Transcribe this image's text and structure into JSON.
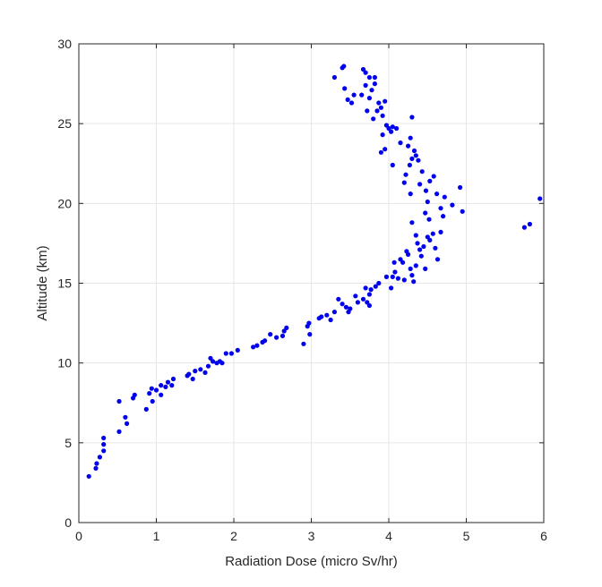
{
  "chart_data": {
    "type": "scatter",
    "xlabel": "Radiation Dose (micro Sv/hr)",
    "ylabel": "Altitude (km)",
    "xlim": [
      0,
      6
    ],
    "ylim": [
      0,
      30
    ],
    "xticks": [
      0,
      1,
      2,
      3,
      4,
      5,
      6
    ],
    "yticks": [
      0,
      5,
      10,
      15,
      20,
      25,
      30
    ],
    "grid": true,
    "colors": {
      "marker": "#0000ee",
      "axis": "#262626",
      "grid": "#e6e6e6"
    },
    "series": [
      {
        "points": [
          [
            0.13,
            2.9
          ],
          [
            0.22,
            3.4
          ],
          [
            0.23,
            3.7
          ],
          [
            0.27,
            4.1
          ],
          [
            0.32,
            4.5
          ],
          [
            0.32,
            4.9
          ],
          [
            0.32,
            5.3
          ],
          [
            0.52,
            5.7
          ],
          [
            0.6,
            6.6
          ],
          [
            0.62,
            6.2
          ],
          [
            0.52,
            7.6
          ],
          [
            0.7,
            7.8
          ],
          [
            0.72,
            8.0
          ],
          [
            0.87,
            7.1
          ],
          [
            0.91,
            8.1
          ],
          [
            0.94,
            8.4
          ],
          [
            0.95,
            7.6
          ],
          [
            1.0,
            8.3
          ],
          [
            1.06,
            8.0
          ],
          [
            1.06,
            8.6
          ],
          [
            1.12,
            8.5
          ],
          [
            1.15,
            8.8
          ],
          [
            1.2,
            8.6
          ],
          [
            1.22,
            9.0
          ],
          [
            1.4,
            9.2
          ],
          [
            1.42,
            9.3
          ],
          [
            1.47,
            9.0
          ],
          [
            1.5,
            9.5
          ],
          [
            1.57,
            9.6
          ],
          [
            1.63,
            9.4
          ],
          [
            1.67,
            9.8
          ],
          [
            1.7,
            10.3
          ],
          [
            1.73,
            10.1
          ],
          [
            1.78,
            10.0
          ],
          [
            1.82,
            10.1
          ],
          [
            1.85,
            10.0
          ],
          [
            1.9,
            10.6
          ],
          [
            1.97,
            10.6
          ],
          [
            2.05,
            10.8
          ],
          [
            2.25,
            11.0
          ],
          [
            2.3,
            11.1
          ],
          [
            2.37,
            11.3
          ],
          [
            2.4,
            11.4
          ],
          [
            2.47,
            11.8
          ],
          [
            2.55,
            11.6
          ],
          [
            2.63,
            11.7
          ],
          [
            2.65,
            12.0
          ],
          [
            2.68,
            12.2
          ],
          [
            2.9,
            11.2
          ],
          [
            2.95,
            12.3
          ],
          [
            2.97,
            12.5
          ],
          [
            2.98,
            11.8
          ],
          [
            3.1,
            12.8
          ],
          [
            3.13,
            12.9
          ],
          [
            3.2,
            13.0
          ],
          [
            3.25,
            12.7
          ],
          [
            3.3,
            13.2
          ],
          [
            3.35,
            14.0
          ],
          [
            3.4,
            13.7
          ],
          [
            3.45,
            13.5
          ],
          [
            3.48,
            13.2
          ],
          [
            3.5,
            13.4
          ],
          [
            3.57,
            14.2
          ],
          [
            3.6,
            13.8
          ],
          [
            3.67,
            14.0
          ],
          [
            3.7,
            14.7
          ],
          [
            3.72,
            13.8
          ],
          [
            3.75,
            14.3
          ],
          [
            3.75,
            13.6
          ],
          [
            3.77,
            14.6
          ],
          [
            3.83,
            14.8
          ],
          [
            3.87,
            15.0
          ],
          [
            3.97,
            15.4
          ],
          [
            4.03,
            14.7
          ],
          [
            4.05,
            15.4
          ],
          [
            4.07,
            16.3
          ],
          [
            4.08,
            15.7
          ],
          [
            4.12,
            15.3
          ],
          [
            4.15,
            16.5
          ],
          [
            4.18,
            16.3
          ],
          [
            4.2,
            15.2
          ],
          [
            4.23,
            17.0
          ],
          [
            4.25,
            16.8
          ],
          [
            4.28,
            15.9
          ],
          [
            4.3,
            15.5
          ],
          [
            4.32,
            15.1
          ],
          [
            4.35,
            16.1
          ],
          [
            4.37,
            17.5
          ],
          [
            4.4,
            17.1
          ],
          [
            4.42,
            16.7
          ],
          [
            4.45,
            17.3
          ],
          [
            4.47,
            15.9
          ],
          [
            4.5,
            17.9
          ],
          [
            4.53,
            17.7
          ],
          [
            4.57,
            18.1
          ],
          [
            4.6,
            17.2
          ],
          [
            4.63,
            16.5
          ],
          [
            4.67,
            18.2
          ],
          [
            4.3,
            18.8
          ],
          [
            4.35,
            18.0
          ],
          [
            4.47,
            19.4
          ],
          [
            4.5,
            20.1
          ],
          [
            4.52,
            19.0
          ],
          [
            4.62,
            20.6
          ],
          [
            4.67,
            19.7
          ],
          [
            4.7,
            19.2
          ],
          [
            4.72,
            20.4
          ],
          [
            4.82,
            19.9
          ],
          [
            4.92,
            21.0
          ],
          [
            4.95,
            19.5
          ],
          [
            4.2,
            21.3
          ],
          [
            4.22,
            21.8
          ],
          [
            4.27,
            22.4
          ],
          [
            4.28,
            20.6
          ],
          [
            4.3,
            22.8
          ],
          [
            4.35,
            23.0
          ],
          [
            4.38,
            22.7
          ],
          [
            4.4,
            21.2
          ],
          [
            4.43,
            22.0
          ],
          [
            4.48,
            20.8
          ],
          [
            4.53,
            21.4
          ],
          [
            4.58,
            21.7
          ],
          [
            4.05,
            22.4
          ],
          [
            4.15,
            23.8
          ],
          [
            4.25,
            23.6
          ],
          [
            4.28,
            24.1
          ],
          [
            4.3,
            25.4
          ],
          [
            4.33,
            23.3
          ],
          [
            3.9,
            23.2
          ],
          [
            3.92,
            24.3
          ],
          [
            3.95,
            23.4
          ],
          [
            3.97,
            24.9
          ],
          [
            4.0,
            24.7
          ],
          [
            4.03,
            24.5
          ],
          [
            4.05,
            24.8
          ],
          [
            4.1,
            24.7
          ],
          [
            3.8,
            25.3
          ],
          [
            3.85,
            25.8
          ],
          [
            3.87,
            26.3
          ],
          [
            3.9,
            26.0
          ],
          [
            3.92,
            25.5
          ],
          [
            3.95,
            26.4
          ],
          [
            3.72,
            25.8
          ],
          [
            3.75,
            26.6
          ],
          [
            3.78,
            27.1
          ],
          [
            3.82,
            27.5
          ],
          [
            3.82,
            27.9
          ],
          [
            3.7,
            27.4
          ],
          [
            3.65,
            26.8
          ],
          [
            3.67,
            28.4
          ],
          [
            3.7,
            28.2
          ],
          [
            3.75,
            27.9
          ],
          [
            3.55,
            26.8
          ],
          [
            3.52,
            26.3
          ],
          [
            3.47,
            26.5
          ],
          [
            3.43,
            27.2
          ],
          [
            3.4,
            28.5
          ],
          [
            3.42,
            28.6
          ],
          [
            3.3,
            27.9
          ],
          [
            5.75,
            18.5
          ],
          [
            5.82,
            18.7
          ],
          [
            5.95,
            20.3
          ]
        ]
      }
    ]
  }
}
